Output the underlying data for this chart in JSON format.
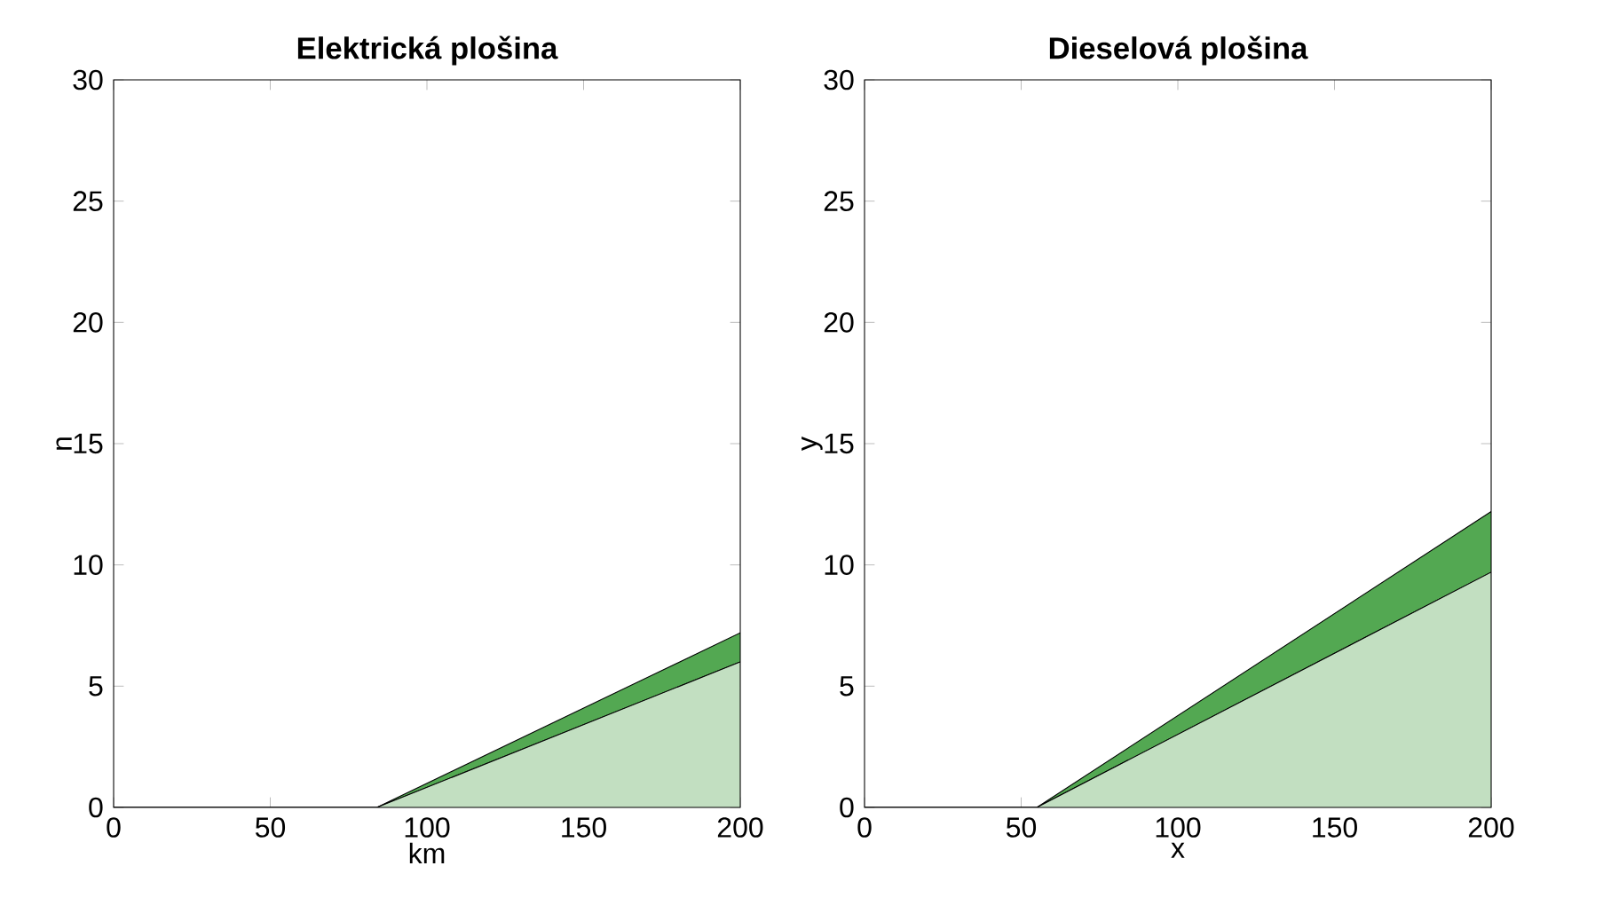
{
  "chart_data": [
    {
      "type": "area",
      "title": "Elektrická plošina",
      "xlabel": "km",
      "ylabel": "n",
      "stacked": true,
      "x": [
        0,
        84,
        200
      ],
      "xlim": [
        0,
        200
      ],
      "ylim": [
        0,
        30
      ],
      "xticks": [
        0,
        50,
        100,
        150,
        200
      ],
      "yticks": [
        0,
        5,
        10,
        15,
        20,
        25,
        30
      ],
      "series": [
        {
          "color": "#c2dfc1",
          "values": [
            0,
            0,
            6.0
          ]
        },
        {
          "color": "#53a852",
          "values": [
            0,
            0,
            1.2
          ]
        }
      ]
    },
    {
      "type": "area",
      "title": "Dieselová plošina",
      "xlabel": "x",
      "ylabel": "y",
      "stacked": true,
      "x": [
        0,
        55,
        200
      ],
      "xlim": [
        0,
        200
      ],
      "ylim": [
        0,
        30
      ],
      "xticks": [
        0,
        50,
        100,
        150,
        200
      ],
      "yticks": [
        0,
        5,
        10,
        15,
        20,
        25,
        30
      ],
      "series": [
        {
          "color": "#c2dfc1",
          "values": [
            0,
            0,
            9.7
          ]
        },
        {
          "color": "#53a852",
          "values": [
            0,
            0,
            2.5
          ]
        }
      ]
    }
  ]
}
